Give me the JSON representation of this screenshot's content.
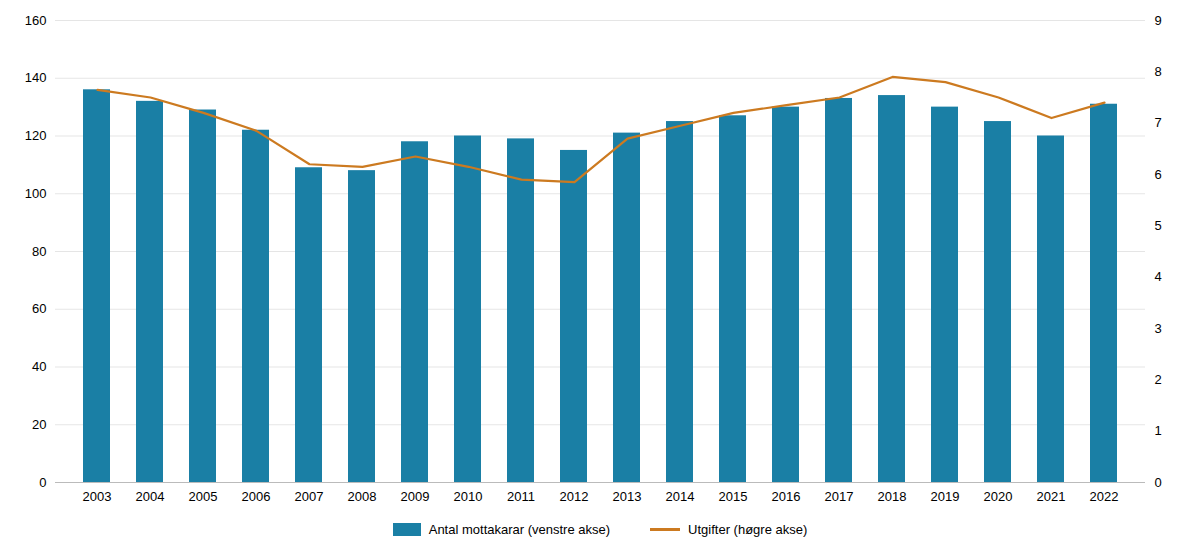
{
  "chart_data": {
    "type": "bar",
    "categories": [
      "2003",
      "2004",
      "2005",
      "2006",
      "2007",
      "2008",
      "2009",
      "2010",
      "2011",
      "2012",
      "2013",
      "2014",
      "2015",
      "2016",
      "2017",
      "2018",
      "2019",
      "2020",
      "2021",
      "2022"
    ],
    "series": [
      {
        "name": "Antal mottakarar (venstre akse)",
        "type": "bar",
        "color": "#1a7fa5",
        "values": [
          136,
          132,
          129,
          122,
          109,
          108,
          118,
          120,
          119,
          115,
          121,
          125,
          127,
          130,
          133,
          134,
          130,
          125,
          120,
          131
        ]
      },
      {
        "name": "Utgifter (høgre akse)",
        "type": "line",
        "axis": "y2",
        "color": "#cc7a20",
        "values": [
          7.65,
          7.5,
          7.2,
          6.85,
          6.2,
          6.15,
          6.35,
          6.15,
          5.9,
          5.85,
          6.7,
          6.95,
          7.2,
          7.35,
          7.5,
          7.9,
          7.8,
          7.5,
          7.1,
          7.4
        ]
      }
    ],
    "ylim": [
      0,
      160
    ],
    "yticks": [
      0,
      20,
      40,
      60,
      80,
      100,
      120,
      140,
      160
    ],
    "y2lim": [
      0,
      9
    ],
    "y2ticks": [
      0,
      1,
      2,
      3,
      4,
      5,
      6,
      7,
      8,
      9
    ],
    "grid": true,
    "legend": "bottom"
  }
}
